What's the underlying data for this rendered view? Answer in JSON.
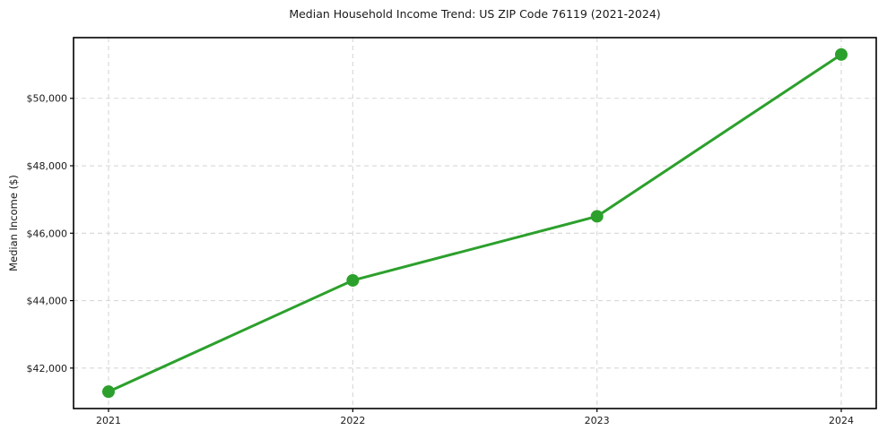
{
  "header": {
    "title": "Median Household Income Trend: US ZIP Code 76119 (2021-2024)"
  },
  "chart_data": {
    "type": "line",
    "title": "Median Household Income Trend: US ZIP Code 76119 (2021-2024)",
    "xlabel": "",
    "ylabel": "Median Income ($)",
    "x": [
      2021,
      2022,
      2023,
      2024
    ],
    "x_tick_labels": [
      "2021",
      "2022",
      "2023",
      "2024"
    ],
    "series": [
      {
        "name": "Median Household Income",
        "values": [
          41300,
          44600,
          46500,
          51300
        ]
      }
    ],
    "y_ticks": [
      42000,
      44000,
      46000,
      48000,
      50000
    ],
    "y_tick_labels": [
      "$42,000",
      "$44,000",
      "$46,000",
      "$48,000",
      "$50,000"
    ],
    "ylim": [
      40800,
      51800
    ],
    "grid": true,
    "grid_style": "dashed",
    "legend_position": "none",
    "marker": "circle",
    "colors": {
      "line": "#2ca02c",
      "marker": "#2ca02c",
      "grid": "#d7d7d7",
      "spine": "#000000",
      "text": "#1a1a1a",
      "background": "#ffffff"
    }
  }
}
